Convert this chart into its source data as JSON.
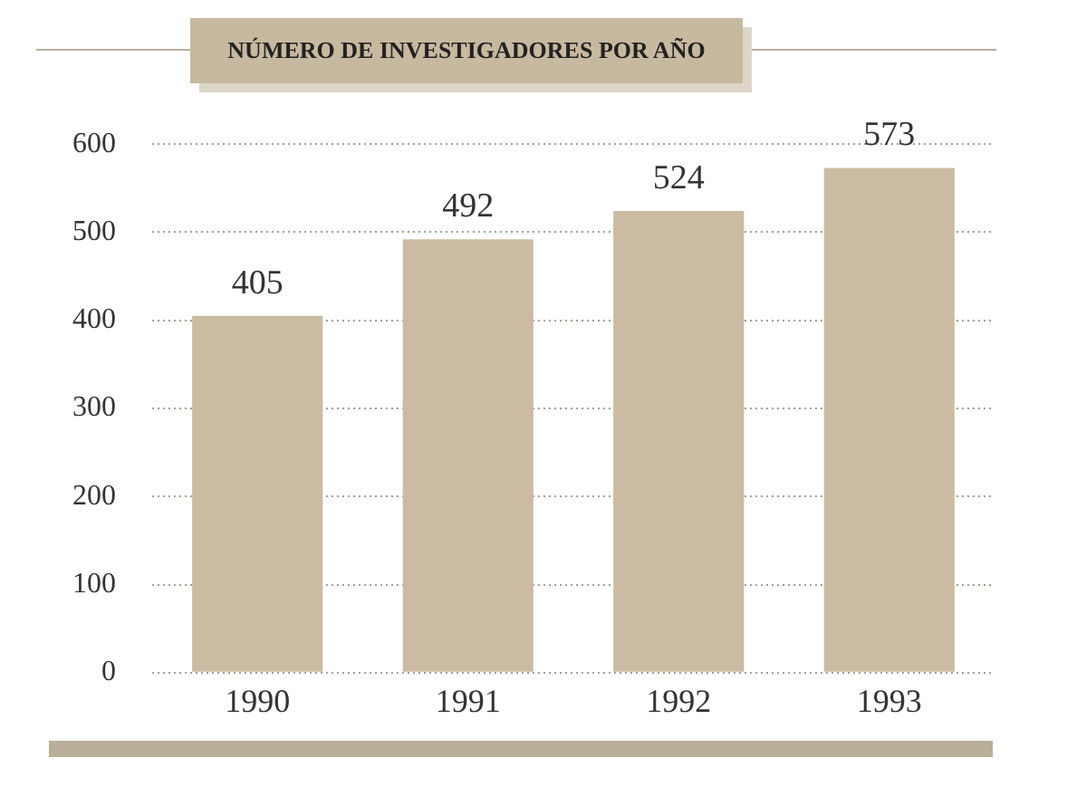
{
  "chart_data": {
    "type": "bar",
    "title": "NÚMERO DE INVESTIGADORES POR AÑO",
    "categories": [
      "1990",
      "1991",
      "1992",
      "1993"
    ],
    "values": [
      405,
      492,
      524,
      573
    ],
    "color": "#cbbba3",
    "ylim": [
      0,
      600
    ],
    "yticks": [
      0,
      100,
      200,
      300,
      400,
      500,
      600
    ],
    "grid": "y",
    "data_labels": true
  }
}
